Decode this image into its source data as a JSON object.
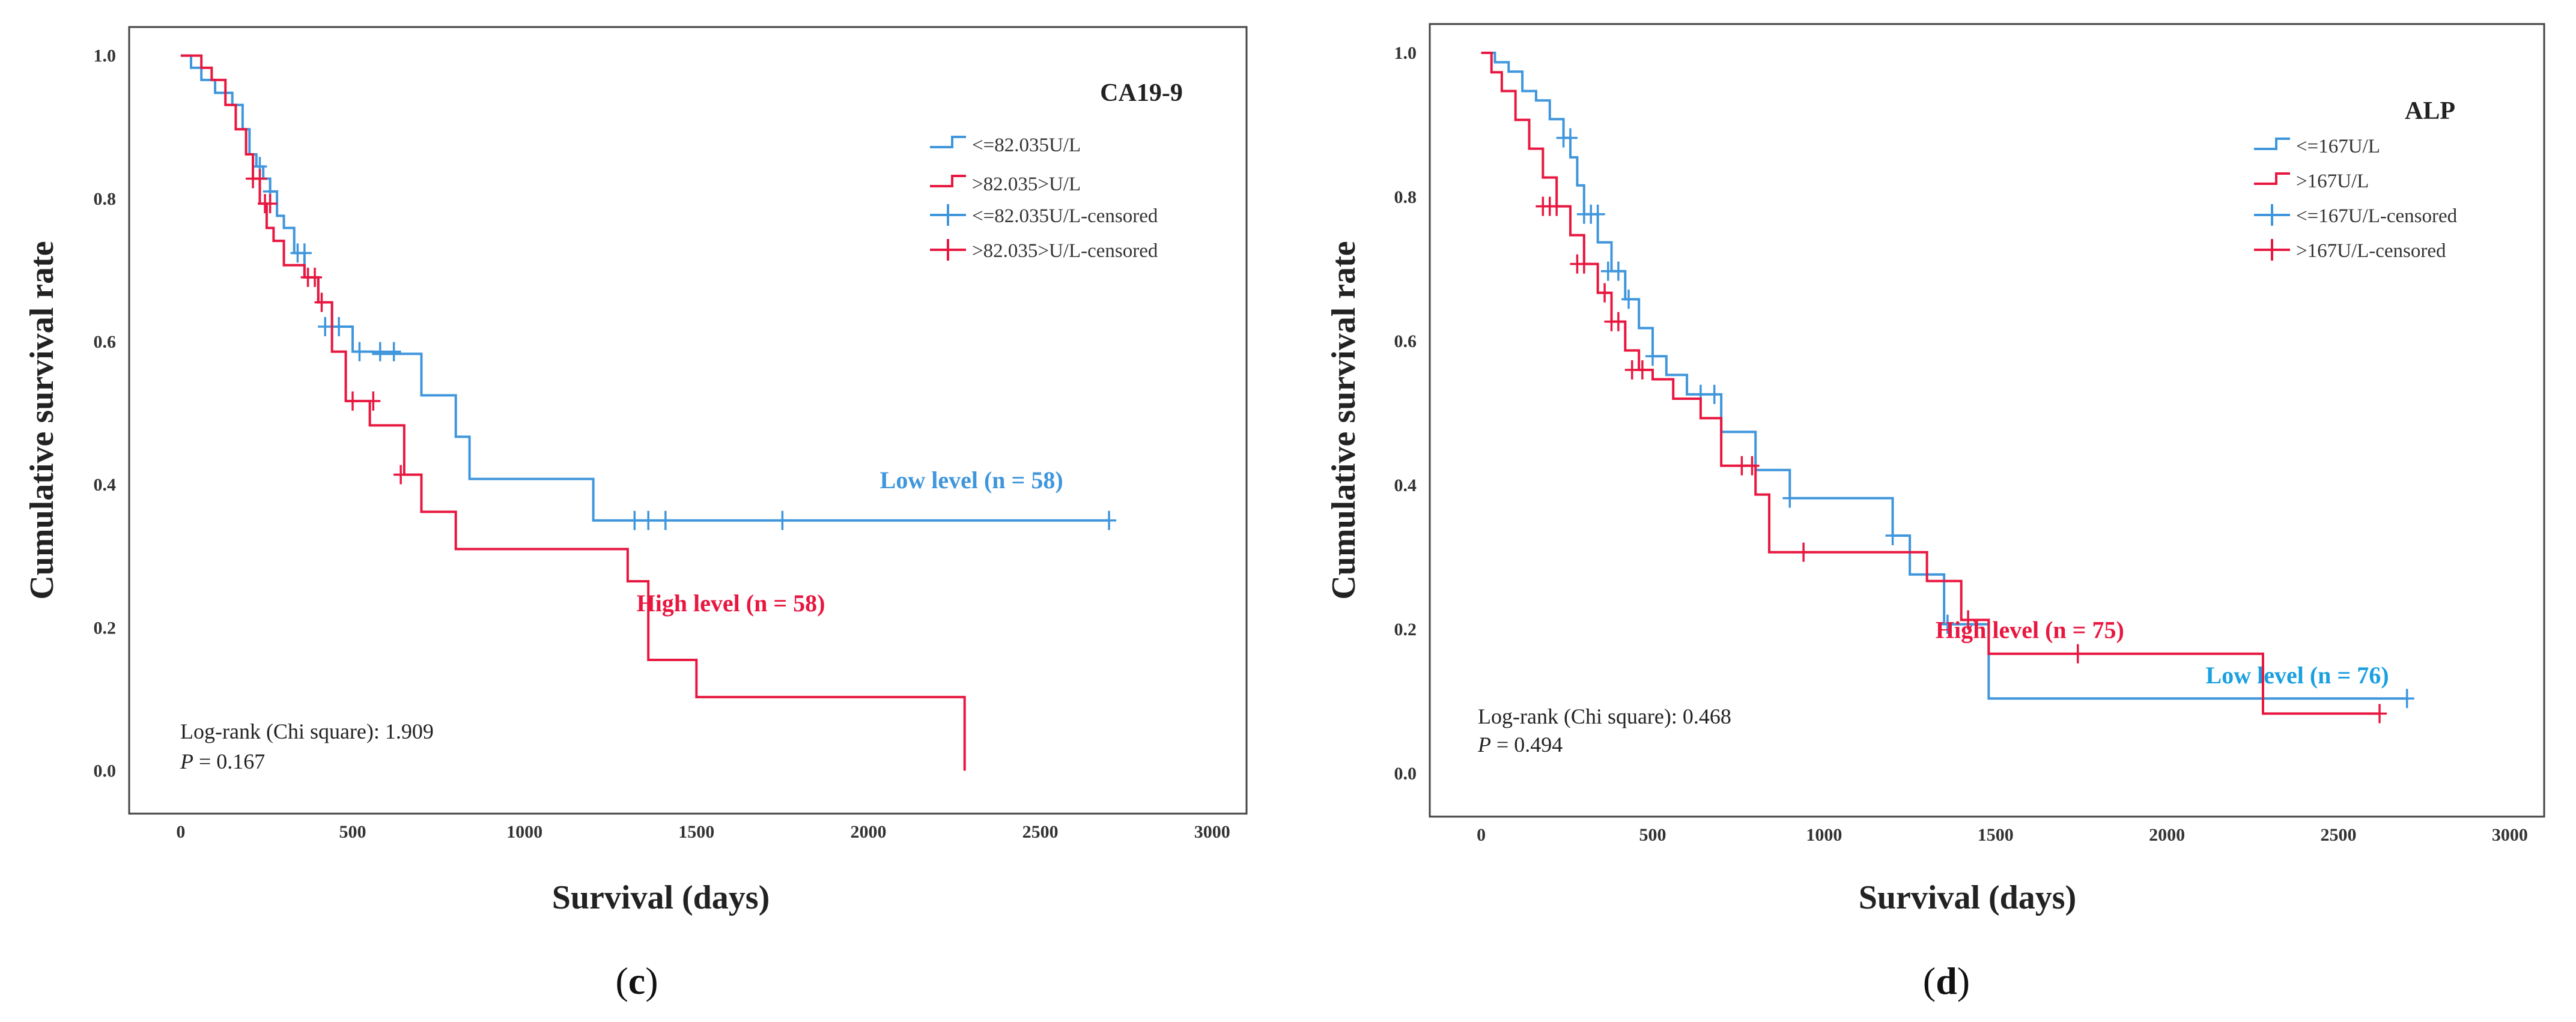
{
  "chart_data": [
    {
      "type": "line",
      "id": "c",
      "title": "CA19-9",
      "caption_letter": "c",
      "xlabel": "Survival (days)",
      "ylabel": "Cumulative survival rate",
      "xlim": [
        -150,
        3100
      ],
      "ylim": [
        -0.06,
        1.04
      ],
      "xticks": [
        0,
        500,
        1000,
        1500,
        2000,
        2500,
        3000
      ],
      "xtick_labels": [
        "0",
        "500",
        "1000",
        "1500",
        "2000",
        "2500",
        "3000"
      ],
      "yticks": [
        0.0,
        0.2,
        0.4,
        0.6,
        0.8,
        1.0
      ],
      "ytick_labels": [
        "0.0",
        "0.2",
        "0.4",
        "0.6",
        "0.8",
        "1.0"
      ],
      "legend": [
        "<=82.035U/L",
        ">82.035>U/L",
        "<=82.035U/L-censored",
        ">82.035>U/L-censored"
      ],
      "stat_line1": "Log-rank (Chi square): 1.909",
      "stat_p_label": "P",
      "stat_p_value": " = 0.167",
      "series": [
        {
          "name": "<=82.035U/L",
          "color": "#3f96dc",
          "group_label": "Low level (n = 58)",
          "label_x": 2300,
          "label_y": 0.395,
          "x": [
            0,
            30,
            60,
            100,
            150,
            180,
            200,
            220,
            240,
            260,
            280,
            300,
            330,
            360,
            400,
            440,
            500,
            560,
            700,
            800,
            840,
            1200,
            2700
          ],
          "y": [
            1.0,
            0.983,
            0.966,
            0.948,
            0.931,
            0.897,
            0.862,
            0.845,
            0.828,
            0.81,
            0.776,
            0.759,
            0.724,
            0.69,
            0.655,
            0.621,
            0.586,
            0.583,
            0.525,
            0.467,
            0.408,
            0.35,
            0.35
          ],
          "censored_x": [
            230,
            260,
            340,
            360,
            420,
            460,
            520,
            580,
            620,
            1320,
            1360,
            1410,
            1750,
            2700
          ],
          "censored_y": [
            0.845,
            0.81,
            0.724,
            0.724,
            0.621,
            0.621,
            0.586,
            0.586,
            0.586,
            0.35,
            0.35,
            0.35,
            0.35,
            0.35
          ]
        },
        {
          "name": ">82.035>U/L",
          "color": "#e8173f",
          "group_label": "High level (n = 58)",
          "label_x": 1600,
          "label_y": 0.223,
          "x": [
            0,
            60,
            90,
            130,
            160,
            190,
            210,
            230,
            250,
            270,
            300,
            360,
            400,
            440,
            480,
            550,
            650,
            700,
            800,
            1300,
            1360,
            1500,
            2280
          ],
          "y": [
            1.0,
            0.983,
            0.966,
            0.931,
            0.897,
            0.862,
            0.828,
            0.793,
            0.759,
            0.741,
            0.707,
            0.69,
            0.655,
            0.586,
            0.517,
            0.483,
            0.414,
            0.362,
            0.31,
            0.265,
            0.155,
            0.103,
            0.052
          ],
          "y_end": 0.0,
          "censored_x": [
            210,
            230,
            245,
            260,
            370,
            390,
            410,
            500,
            560,
            640
          ],
          "censored_y": [
            0.828,
            0.828,
            0.793,
            0.793,
            0.69,
            0.69,
            0.655,
            0.517,
            0.517,
            0.414
          ]
        }
      ]
    },
    {
      "type": "line",
      "id": "d",
      "title": "ALP",
      "caption_letter": "d",
      "xlabel": "Survival (days)",
      "ylabel": "Cumulative survival rate",
      "xlim": [
        -150,
        3100
      ],
      "ylim": [
        -0.06,
        1.04
      ],
      "xticks": [
        0,
        500,
        1000,
        1500,
        2000,
        2500,
        3000
      ],
      "xtick_labels": [
        "0",
        "500",
        "1000",
        "1500",
        "2000",
        "2500",
        "3000"
      ],
      "yticks": [
        0.0,
        0.2,
        0.4,
        0.6,
        0.8,
        1.0
      ],
      "ytick_labels": [
        "0.0",
        "0.2",
        "0.4",
        "0.6",
        "0.8",
        "1.0"
      ],
      "legend": [
        "<=167U/L",
        ">167U/L",
        "<=167U/L-censored",
        ">167U/L-censored"
      ],
      "stat_line1": "Log-rank (Chi square): 0.468",
      "stat_p_label": "P",
      "stat_p_value": " = 0.494",
      "series": [
        {
          "name": "<=167U/L",
          "color": "#3f96dc",
          "group_label": "Low level (n = 76)",
          "label_color": "#1aa0e0",
          "label_x": 2380,
          "label_y": 0.125,
          "x": [
            0,
            40,
            80,
            120,
            160,
            200,
            240,
            260,
            280,
            300,
            340,
            380,
            420,
            460,
            500,
            540,
            600,
            700,
            800,
            900,
            1200,
            1250,
            1350,
            1480,
            2700
          ],
          "y": [
            1.0,
            0.987,
            0.974,
            0.947,
            0.934,
            0.908,
            0.882,
            0.855,
            0.816,
            0.776,
            0.737,
            0.697,
            0.658,
            0.618,
            0.579,
            0.553,
            0.526,
            0.474,
            0.421,
            0.382,
            0.33,
            0.276,
            0.207,
            0.104,
            0.104
          ],
          "censored_x": [
            240,
            260,
            300,
            320,
            340,
            370,
            400,
            430,
            500,
            640,
            680,
            900,
            1200,
            1360,
            2700
          ],
          "censored_y": [
            0.882,
            0.882,
            0.776,
            0.776,
            0.776,
            0.697,
            0.697,
            0.658,
            0.579,
            0.526,
            0.526,
            0.382,
            0.33,
            0.207,
            0.104
          ]
        },
        {
          "name": ">167U/L",
          "color": "#e8173f",
          "group_label": "High level (n = 75)",
          "label_x": 1600,
          "label_y": 0.188,
          "x": [
            0,
            30,
            60,
            100,
            140,
            180,
            220,
            260,
            300,
            340,
            380,
            420,
            460,
            500,
            560,
            640,
            700,
            800,
            840,
            1300,
            1400,
            1480,
            2280,
            2620
          ],
          "y": [
            1.0,
            0.973,
            0.947,
            0.907,
            0.867,
            0.827,
            0.787,
            0.747,
            0.707,
            0.667,
            0.627,
            0.587,
            0.56,
            0.547,
            0.52,
            0.493,
            0.427,
            0.387,
            0.307,
            0.267,
            0.213,
            0.166,
            0.083,
            0.083
          ],
          "censored_x": [
            180,
            200,
            220,
            280,
            300,
            360,
            380,
            400,
            440,
            470,
            760,
            790,
            940,
            1420,
            1740,
            2620
          ],
          "censored_y": [
            0.787,
            0.787,
            0.787,
            0.707,
            0.707,
            0.667,
            0.627,
            0.627,
            0.56,
            0.56,
            0.427,
            0.427,
            0.307,
            0.213,
            0.166,
            0.083
          ]
        }
      ]
    }
  ]
}
